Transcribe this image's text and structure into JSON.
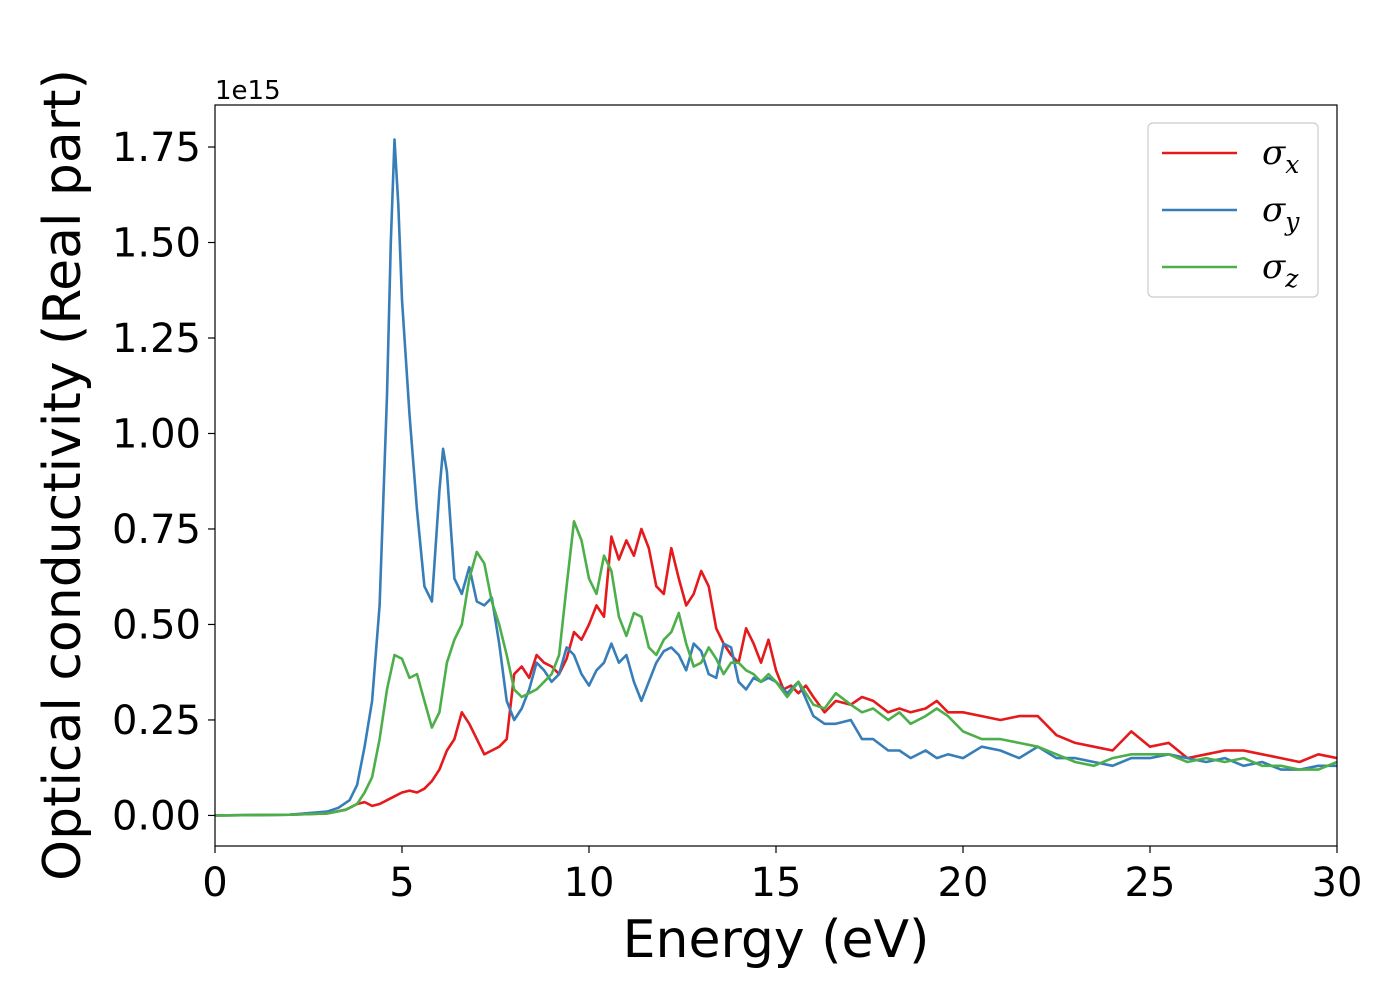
{
  "chart_data": {
    "type": "line",
    "title": "",
    "xlabel": "Energy (eV)",
    "ylabel": "Optical conductivity (Real part)",
    "y_offset_label": "1e15",
    "xlim": [
      0,
      30
    ],
    "ylim": [
      -0.08,
      1.86
    ],
    "x_ticks": [
      0,
      5,
      10,
      15,
      20,
      25,
      30
    ],
    "x_tick_labels": [
      "0",
      "5",
      "10",
      "15",
      "20",
      "25",
      "30"
    ],
    "y_ticks": [
      0,
      0.25,
      0.5,
      0.75,
      1.0,
      1.25,
      1.5,
      1.75
    ],
    "y_tick_labels": [
      "0.00",
      "0.25",
      "0.50",
      "0.75",
      "1.00",
      "1.25",
      "1.50",
      "1.75"
    ],
    "grid": false,
    "legend_position": "top-right",
    "series": [
      {
        "name": "σx",
        "legend_base": "σ",
        "legend_sub": "x",
        "color": "#e41a1c",
        "x": [
          0,
          2,
          3,
          3.5,
          3.8,
          4.0,
          4.2,
          4.4,
          4.6,
          4.8,
          5.0,
          5.2,
          5.4,
          5.6,
          5.8,
          6.0,
          6.2,
          6.4,
          6.6,
          6.8,
          7.0,
          7.2,
          7.4,
          7.6,
          7.8,
          8.0,
          8.2,
          8.4,
          8.6,
          8.8,
          9.0,
          9.2,
          9.4,
          9.6,
          9.8,
          10.0,
          10.2,
          10.4,
          10.6,
          10.8,
          11.0,
          11.2,
          11.4,
          11.6,
          11.8,
          12.0,
          12.2,
          12.4,
          12.6,
          12.8,
          13.0,
          13.2,
          13.4,
          13.6,
          13.8,
          14.0,
          14.2,
          14.4,
          14.6,
          14.8,
          15.0,
          15.2,
          15.4,
          15.6,
          15.8,
          16.0,
          16.3,
          16.6,
          17.0,
          17.3,
          17.6,
          18.0,
          18.3,
          18.6,
          19.0,
          19.3,
          19.6,
          20.0,
          20.5,
          21.0,
          21.5,
          22.0,
          22.5,
          23.0,
          23.5,
          24.0,
          24.5,
          25.0,
          25.5,
          26.0,
          26.5,
          27.0,
          27.5,
          28.0,
          28.5,
          29.0,
          29.5,
          30.0
        ],
        "y": [
          0,
          0.002,
          0.005,
          0.015,
          0.03,
          0.035,
          0.025,
          0.03,
          0.04,
          0.05,
          0.06,
          0.065,
          0.06,
          0.07,
          0.09,
          0.12,
          0.17,
          0.2,
          0.27,
          0.24,
          0.2,
          0.16,
          0.17,
          0.18,
          0.2,
          0.37,
          0.39,
          0.36,
          0.42,
          0.4,
          0.39,
          0.37,
          0.41,
          0.48,
          0.46,
          0.5,
          0.55,
          0.52,
          0.73,
          0.67,
          0.72,
          0.68,
          0.75,
          0.7,
          0.6,
          0.58,
          0.7,
          0.62,
          0.55,
          0.58,
          0.64,
          0.6,
          0.49,
          0.45,
          0.42,
          0.4,
          0.49,
          0.45,
          0.4,
          0.46,
          0.38,
          0.33,
          0.34,
          0.32,
          0.34,
          0.31,
          0.27,
          0.3,
          0.29,
          0.31,
          0.3,
          0.27,
          0.28,
          0.27,
          0.28,
          0.3,
          0.27,
          0.27,
          0.26,
          0.25,
          0.26,
          0.26,
          0.21,
          0.19,
          0.18,
          0.17,
          0.22,
          0.18,
          0.19,
          0.15,
          0.16,
          0.17,
          0.17,
          0.16,
          0.15,
          0.14,
          0.16,
          0.15
        ]
      },
      {
        "name": "σy",
        "legend_base": "σ",
        "legend_sub": "y",
        "color": "#377eb8",
        "x": [
          0,
          2,
          3,
          3.3,
          3.6,
          3.8,
          4.0,
          4.2,
          4.4,
          4.6,
          4.7,
          4.8,
          4.9,
          5.0,
          5.2,
          5.4,
          5.6,
          5.8,
          6.0,
          6.1,
          6.2,
          6.4,
          6.6,
          6.8,
          7.0,
          7.2,
          7.4,
          7.6,
          7.8,
          8.0,
          8.2,
          8.4,
          8.6,
          8.8,
          9.0,
          9.2,
          9.4,
          9.6,
          9.8,
          10.0,
          10.2,
          10.4,
          10.6,
          10.8,
          11.0,
          11.2,
          11.4,
          11.6,
          11.8,
          12.0,
          12.2,
          12.4,
          12.6,
          12.8,
          13.0,
          13.2,
          13.4,
          13.6,
          13.8,
          14.0,
          14.2,
          14.4,
          14.6,
          14.8,
          15.0,
          15.3,
          15.6,
          16.0,
          16.3,
          16.6,
          17.0,
          17.3,
          17.6,
          18.0,
          18.3,
          18.6,
          19.0,
          19.3,
          19.6,
          20.0,
          20.5,
          21.0,
          21.5,
          22.0,
          22.5,
          23.0,
          23.5,
          24.0,
          24.5,
          25.0,
          25.5,
          26.0,
          26.5,
          27.0,
          27.5,
          28.0,
          28.5,
          29.0,
          29.5,
          30.0
        ],
        "y": [
          0,
          0.002,
          0.01,
          0.02,
          0.04,
          0.08,
          0.18,
          0.3,
          0.55,
          1.1,
          1.5,
          1.77,
          1.6,
          1.35,
          1.05,
          0.8,
          0.6,
          0.56,
          0.85,
          0.96,
          0.9,
          0.62,
          0.58,
          0.65,
          0.56,
          0.55,
          0.57,
          0.45,
          0.3,
          0.25,
          0.28,
          0.33,
          0.4,
          0.38,
          0.35,
          0.37,
          0.44,
          0.42,
          0.37,
          0.34,
          0.38,
          0.4,
          0.45,
          0.4,
          0.42,
          0.35,
          0.3,
          0.35,
          0.4,
          0.43,
          0.44,
          0.42,
          0.38,
          0.45,
          0.43,
          0.37,
          0.36,
          0.45,
          0.44,
          0.35,
          0.33,
          0.36,
          0.35,
          0.36,
          0.35,
          0.32,
          0.35,
          0.26,
          0.24,
          0.24,
          0.25,
          0.2,
          0.2,
          0.17,
          0.17,
          0.15,
          0.17,
          0.15,
          0.16,
          0.15,
          0.18,
          0.17,
          0.15,
          0.18,
          0.15,
          0.15,
          0.14,
          0.13,
          0.15,
          0.15,
          0.16,
          0.15,
          0.14,
          0.15,
          0.13,
          0.14,
          0.12,
          0.12,
          0.13,
          0.13
        ]
      },
      {
        "name": "σz",
        "legend_base": "σ",
        "legend_sub": "z",
        "color": "#4daf4a",
        "x": [
          0,
          2,
          3,
          3.5,
          3.8,
          4.0,
          4.2,
          4.4,
          4.6,
          4.8,
          5.0,
          5.2,
          5.4,
          5.6,
          5.8,
          6.0,
          6.2,
          6.4,
          6.6,
          6.8,
          7.0,
          7.2,
          7.4,
          7.6,
          7.8,
          8.0,
          8.2,
          8.4,
          8.6,
          8.8,
          9.0,
          9.2,
          9.4,
          9.6,
          9.8,
          10.0,
          10.2,
          10.4,
          10.6,
          10.8,
          11.0,
          11.2,
          11.4,
          11.6,
          11.8,
          12.0,
          12.2,
          12.4,
          12.6,
          12.8,
          13.0,
          13.2,
          13.4,
          13.6,
          13.8,
          14.0,
          14.2,
          14.4,
          14.6,
          14.8,
          15.0,
          15.3,
          15.6,
          16.0,
          16.3,
          16.6,
          17.0,
          17.3,
          17.6,
          18.0,
          18.3,
          18.6,
          19.0,
          19.3,
          19.6,
          20.0,
          20.5,
          21.0,
          21.5,
          22.0,
          22.5,
          23.0,
          23.5,
          24.0,
          24.5,
          25.0,
          25.5,
          26.0,
          26.5,
          27.0,
          27.5,
          28.0,
          28.5,
          29.0,
          29.5,
          30.0
        ],
        "y": [
          0,
          0.002,
          0.005,
          0.015,
          0.03,
          0.06,
          0.1,
          0.2,
          0.33,
          0.42,
          0.41,
          0.36,
          0.37,
          0.3,
          0.23,
          0.27,
          0.4,
          0.46,
          0.5,
          0.62,
          0.69,
          0.66,
          0.56,
          0.5,
          0.42,
          0.33,
          0.31,
          0.32,
          0.33,
          0.35,
          0.37,
          0.42,
          0.6,
          0.77,
          0.72,
          0.62,
          0.58,
          0.68,
          0.64,
          0.52,
          0.47,
          0.53,
          0.52,
          0.44,
          0.42,
          0.46,
          0.48,
          0.53,
          0.45,
          0.39,
          0.4,
          0.44,
          0.41,
          0.37,
          0.4,
          0.4,
          0.38,
          0.37,
          0.35,
          0.37,
          0.35,
          0.31,
          0.35,
          0.29,
          0.28,
          0.32,
          0.29,
          0.27,
          0.28,
          0.25,
          0.27,
          0.24,
          0.26,
          0.28,
          0.26,
          0.22,
          0.2,
          0.2,
          0.19,
          0.18,
          0.16,
          0.14,
          0.13,
          0.15,
          0.16,
          0.16,
          0.16,
          0.14,
          0.15,
          0.14,
          0.15,
          0.13,
          0.13,
          0.12,
          0.12,
          0.14
        ]
      }
    ]
  }
}
